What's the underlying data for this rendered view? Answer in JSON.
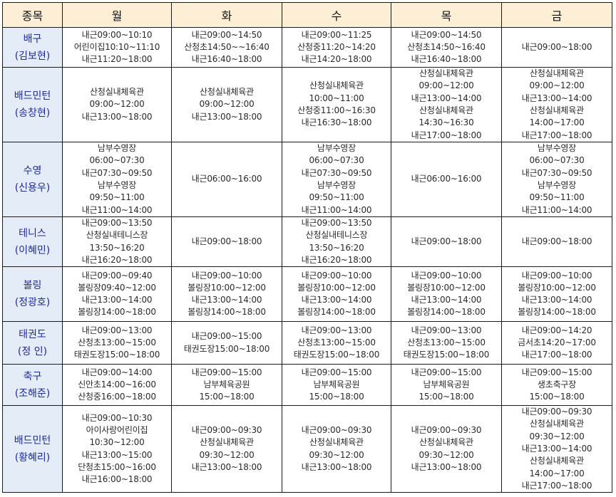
{
  "header": {
    "sport": "종목",
    "days": [
      "월",
      "화",
      "수",
      "목",
      "금"
    ]
  },
  "rows": [
    {
      "sport": "배구",
      "person": "(김보현)",
      "cells": [
        [
          "내근09:00~10:10",
          "어린이집10:10~11:10",
          "내근11:20~18:00"
        ],
        [
          "내근09:00~14:50",
          "산청초14:50~~16:40",
          "내근16:40~18:00"
        ],
        [
          "내근09:00~11:25",
          "산청중11:20~14:20",
          "내근14:20~18:00"
        ],
        [
          "내근09:00~14:50",
          "산청초14:50~16:40",
          "내근16:40~18:00"
        ],
        [
          "내근09:00~18:00"
        ]
      ]
    },
    {
      "sport": "배드민턴",
      "person": "(송창현)",
      "cells": [
        [
          "산청실내체육관",
          "09:00~12:00",
          "내근13:00~18:00"
        ],
        [
          "산청실내체육관",
          "09:00~12:00",
          "내근13:00~18:00"
        ],
        [
          "산청실내체육관",
          "10:00~11:00",
          "산청중11:00~16:30",
          "내근16:30~18:00"
        ],
        [
          "산청실내체육관",
          "09:00~12:00",
          "내근13:00~14:00",
          "산청실내체육관",
          "14:30~16:30",
          "내근17:00~18:00"
        ],
        [
          "산청실내체육관",
          "09:00~12:00",
          "내근13:00~14:00",
          "산청실내체육관",
          "14:00~17:00",
          "내근17:00~18:00"
        ]
      ]
    },
    {
      "sport": "수영",
      "person": "(신용우)",
      "cells": [
        [
          "남부수영장",
          "06:00~07:30",
          "내근07:30~09:50",
          "남부수영장",
          "09:50~11:00",
          "내근11:00~14:00"
        ],
        [
          "내근06:00~16:00"
        ],
        [
          "남부수영장",
          "06:00~07:30",
          "내근07:30~09:50",
          "남부수영장",
          "09:50~11:00",
          "내근11:00~14:00"
        ],
        [
          "내근06:00~16:00"
        ],
        [
          "남부수영장",
          "06:00~07:30",
          "내근07:30~09:50",
          "남부수영장",
          "09:50~11:00",
          "내근11:00~14:00"
        ]
      ]
    },
    {
      "sport": "테니스",
      "person": "(이혜민)",
      "cells": [
        [
          "내근09:00~13:50",
          "산청실내테니스장",
          "13:50~16:20",
          "내근16:20~18:00"
        ],
        [
          "내근09:00~18:00"
        ],
        [
          "내근09:00~13:50",
          "산청실내테니스장",
          "13:50~16:20",
          "내근16:20~18:00"
        ],
        [
          "내근09:00~18:00"
        ],
        [
          "내근09:00~18:00"
        ]
      ]
    },
    {
      "sport": "볼링",
      "person": "(정광호)",
      "cells": [
        [
          "내근09:00~09:40",
          "볼링장09:40~12:00",
          "내근13:00~14:00",
          "볼링장14:00~18:00"
        ],
        [
          "내근09:00~10:00",
          "볼링장10:00~12:00",
          "내근13:00~14:00",
          "볼링장14:00~18:00"
        ],
        [
          "내근09:00~10:00",
          "볼링장10:00~12:00",
          "내근13:00~14:00",
          "볼링장14:00~18:00"
        ],
        [
          "내근09:00~10:00",
          "볼링장10:00~12:00",
          "내근13:00~14:00",
          "볼링장14:00~18:00"
        ],
        [
          "내근09:00~10:00",
          "볼링장10:00~12:00",
          "내근13:00~14:00",
          "볼링장14:00~18:00"
        ]
      ]
    },
    {
      "sport": "태권도",
      "person": "(정  인)",
      "cells": [
        [
          "내근09:00~13:00",
          "산청초13:00~15:00",
          "태권도장15:00~18:00"
        ],
        [
          "내근09:00~15:00",
          "태권도장15:00~18:00"
        ],
        [
          "내근09:00~13:00",
          "산청초13:00~15:00",
          "태권도장15:00~18:00"
        ],
        [
          "내근09:00~13:00",
          "산청초13:00~15:00",
          "태권도장15:00~18:00"
        ],
        [
          "내근09:00~14:20",
          "금서초14:20~17:00",
          "내근17:00~18:00"
        ]
      ]
    },
    {
      "sport": "축구",
      "person": "(조해준)",
      "cells": [
        [
          "내근09:00~14:00",
          "신안초14:00~16:00",
          "산청중16:00~18:00"
        ],
        [
          "내근09:00~15:00",
          "남부체육공원",
          "15:00~18:00"
        ],
        [
          "내근09:00~15:00",
          "남부체육공원",
          "15:00~18:00"
        ],
        [
          "내근09:00~15:00",
          "남부체육공원",
          "15:00~18:00"
        ],
        [
          "내근09:00~15:00",
          "생초축구장",
          "15:00~18:00"
        ]
      ]
    },
    {
      "sport": "배드민턴",
      "person": "(황혜리)",
      "cells": [
        [
          "내근09:00~10:30",
          "아이사랑어린이집",
          "10:30~12:00",
          "내근13:00~15:00",
          "단청초15:00~16:00",
          "내근16:00~18:00"
        ],
        [
          "내근09:00~09:30",
          "산청실내체육관",
          "09:30~12:00",
          "내근13:00~18:00"
        ],
        [
          "내근09:00~09:30",
          "산청실내체육관",
          "09:30~12:00",
          "내근13:00~18:00"
        ],
        [
          "내근09:00~09:30",
          "산청실내체육관",
          "09:30~12:00",
          "내근13:00~18:00"
        ],
        [
          "내근09:00~09:30",
          "산청실내체육관",
          "09:30~12:00",
          "내근13:00~14:00",
          "산청실내체육관",
          "14:00~17:00",
          "내근17:00~18:00"
        ]
      ]
    }
  ],
  "colors": {
    "header_bg": "#fcefd6",
    "sport_bg": "#e4ecf7",
    "sport_text": "#1f2a9c",
    "border": "#1a1a1a"
  }
}
